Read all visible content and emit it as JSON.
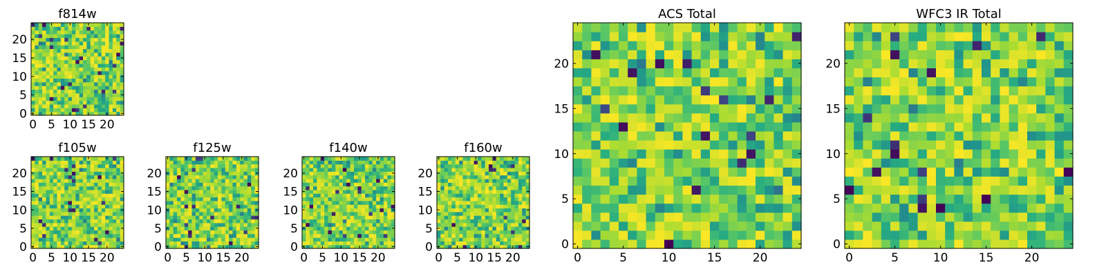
{
  "chart_data": [
    {
      "id": "f814w",
      "type": "heatmap",
      "title": "f814w",
      "cells": 25,
      "xlim": [
        -0.5,
        24.5
      ],
      "ylim": [
        -0.5,
        24.5
      ],
      "xticks": [
        0,
        5,
        10,
        15,
        20
      ],
      "yticks": [
        0,
        5,
        10,
        15,
        20
      ],
      "colormap": "viridis"
    },
    {
      "id": "f105w",
      "type": "heatmap",
      "title": "f105w",
      "cells": 25,
      "xlim": [
        -0.5,
        24.5
      ],
      "ylim": [
        -0.5,
        24.5
      ],
      "xticks": [
        0,
        5,
        10,
        15,
        20
      ],
      "yticks": [
        0,
        5,
        10,
        15,
        20
      ],
      "colormap": "viridis"
    },
    {
      "id": "f125w",
      "type": "heatmap",
      "title": "f125w",
      "cells": 25,
      "xlim": [
        -0.5,
        24.5
      ],
      "ylim": [
        -0.5,
        24.5
      ],
      "xticks": [
        0,
        5,
        10,
        15,
        20
      ],
      "yticks": [
        0,
        5,
        10,
        15,
        20
      ],
      "colormap": "viridis"
    },
    {
      "id": "f140w",
      "type": "heatmap",
      "title": "f140w",
      "cells": 25,
      "xlim": [
        -0.5,
        24.5
      ],
      "ylim": [
        -0.5,
        24.5
      ],
      "xticks": [
        0,
        5,
        10,
        15,
        20
      ],
      "yticks": [
        0,
        5,
        10,
        15,
        20
      ],
      "colormap": "viridis"
    },
    {
      "id": "f160w",
      "type": "heatmap",
      "title": "f160w",
      "cells": 25,
      "xlim": [
        -0.5,
        24.5
      ],
      "ylim": [
        -0.5,
        24.5
      ],
      "xticks": [
        0,
        5,
        10,
        15,
        20
      ],
      "yticks": [
        0,
        5,
        10,
        15,
        20
      ],
      "colormap": "viridis"
    },
    {
      "id": "acs-total",
      "type": "heatmap",
      "title": "ACS Total",
      "cells": 25,
      "xlim": [
        -0.5,
        24.5
      ],
      "ylim": [
        -0.5,
        24.5
      ],
      "xticks": [
        0,
        5,
        10,
        15,
        20
      ],
      "yticks": [
        0,
        5,
        10,
        15,
        20
      ],
      "colormap": "viridis"
    },
    {
      "id": "wfc3-ir-total",
      "type": "heatmap",
      "title": "WFC3 IR Total",
      "cells": 25,
      "xlim": [
        -0.5,
        24.5
      ],
      "ylim": [
        -0.5,
        24.5
      ],
      "xticks": [
        0,
        5,
        10,
        15,
        20
      ],
      "yticks": [
        0,
        5,
        10,
        15,
        20
      ],
      "colormap": "viridis"
    }
  ],
  "colors": {
    "axes_edge": "#000000",
    "background": "#ffffff",
    "viridis_stops": [
      "#440154",
      "#3b528b",
      "#21918c",
      "#27ad81",
      "#5ec962",
      "#aadc32",
      "#fde725"
    ]
  }
}
